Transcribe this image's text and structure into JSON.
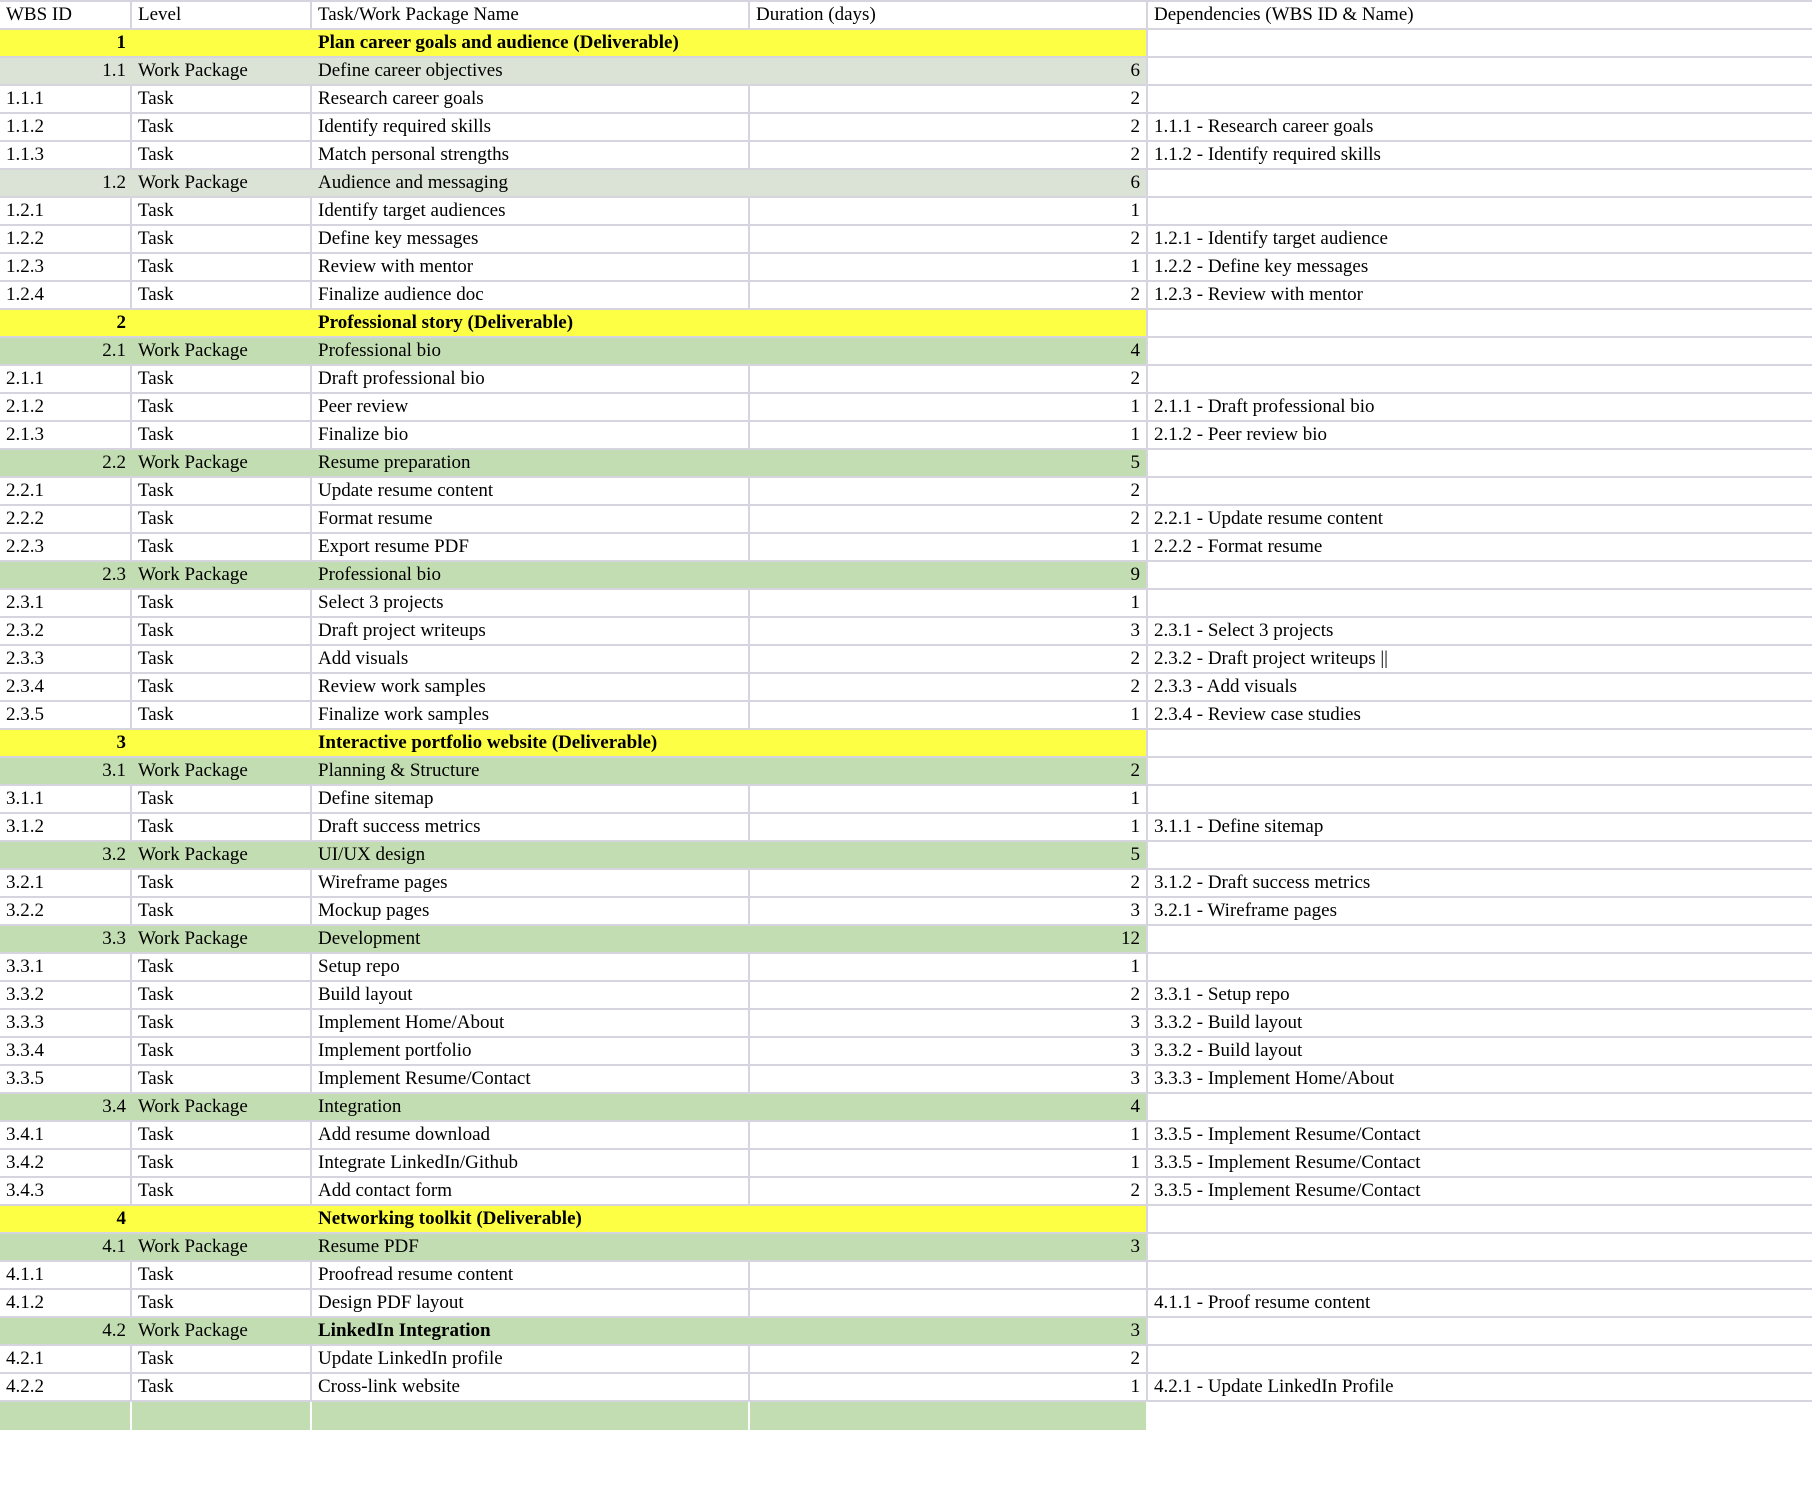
{
  "colors": {
    "deliverable_bg": "#fdff44",
    "work_package_bg": "#c3ddb2",
    "work_package_pale_bg": "#dbe3d6",
    "gridline": "#d6d4de",
    "background": "#ffffff",
    "text": "#000000"
  },
  "table": {
    "columns": [
      {
        "key": "id",
        "label": "WBS ID"
      },
      {
        "key": "level",
        "label": "Level"
      },
      {
        "key": "name",
        "label": "Task/Work Package Name"
      },
      {
        "key": "duration",
        "label": "Duration (days)"
      },
      {
        "key": "dependency",
        "label": "Dependencies (WBS ID & Name)"
      }
    ],
    "rows": [
      {
        "id": "1",
        "level": "",
        "name": "Plan career goals and audience (Deliverable)",
        "duration": "",
        "dependency": "",
        "type": "deliverable"
      },
      {
        "id": "1.1",
        "level": "Work Package",
        "name": "Define career objectives",
        "duration": "6",
        "dependency": "",
        "type": "work_package_pale"
      },
      {
        "id": "1.1.1",
        "level": "Task",
        "name": "Research career goals",
        "duration": "2",
        "dependency": "",
        "type": "task"
      },
      {
        "id": "1.1.2",
        "level": "Task",
        "name": "Identify required skills",
        "duration": "2",
        "dependency": "1.1.1 - Research career goals",
        "type": "task"
      },
      {
        "id": "1.1.3",
        "level": "Task",
        "name": "Match personal strengths",
        "duration": "2",
        "dependency": "1.1.2 - Identify required skills",
        "type": "task"
      },
      {
        "id": "1.2",
        "level": "Work Package",
        "name": "Audience and messaging",
        "duration": "6",
        "dependency": "",
        "type": "work_package_pale"
      },
      {
        "id": "1.2.1",
        "level": "Task",
        "name": "Identify target audiences",
        "duration": "1",
        "dependency": "",
        "type": "task"
      },
      {
        "id": "1.2.2",
        "level": "Task",
        "name": "Define key messages",
        "duration": "2",
        "dependency": "1.2.1 - Identify target audience",
        "type": "task"
      },
      {
        "id": "1.2.3",
        "level": "Task",
        "name": "Review with mentor",
        "duration": "1",
        "dependency": "1.2.2 - Define key messages",
        "type": "task"
      },
      {
        "id": "1.2.4",
        "level": "Task",
        "name": "Finalize audience doc",
        "duration": "2",
        "dependency": "1.2.3 - Review with mentor",
        "type": "task"
      },
      {
        "id": "2",
        "level": "",
        "name": "Professional story (Deliverable)",
        "duration": "",
        "dependency": "",
        "type": "deliverable"
      },
      {
        "id": "2.1",
        "level": "Work Package",
        "name": "Professional bio",
        "duration": "4",
        "dependency": "",
        "type": "work_package"
      },
      {
        "id": "2.1.1",
        "level": "Task",
        "name": "Draft professional bio",
        "duration": "2",
        "dependency": "",
        "type": "task"
      },
      {
        "id": "2.1.2",
        "level": "Task",
        "name": "Peer review",
        "duration": "1",
        "dependency": "2.1.1 - Draft professional bio",
        "type": "task"
      },
      {
        "id": "2.1.3",
        "level": "Task",
        "name": "Finalize bio",
        "duration": "1",
        "dependency": "2.1.2 - Peer review bio",
        "type": "task"
      },
      {
        "id": "2.2",
        "level": "Work Package",
        "name": "Resume preparation",
        "duration": "5",
        "dependency": "",
        "type": "work_package"
      },
      {
        "id": "2.2.1",
        "level": "Task",
        "name": "Update resume content",
        "duration": "2",
        "dependency": "",
        "type": "task"
      },
      {
        "id": "2.2.2",
        "level": "Task",
        "name": "Format resume",
        "duration": "2",
        "dependency": "2.2.1 - Update resume content",
        "type": "task"
      },
      {
        "id": "2.2.3",
        "level": "Task",
        "name": "Export resume PDF",
        "duration": "1",
        "dependency": "2.2.2 - Format resume",
        "type": "task"
      },
      {
        "id": "2.3",
        "level": "Work Package",
        "name": "Professional bio",
        "duration": "9",
        "dependency": "",
        "type": "work_package"
      },
      {
        "id": "2.3.1",
        "level": "Task",
        "name": "Select 3 projects",
        "duration": "1",
        "dependency": "",
        "type": "task"
      },
      {
        "id": "2.3.2",
        "level": "Task",
        "name": "Draft project writeups",
        "duration": "3",
        "dependency": "2.3.1 - Select 3 projects",
        "type": "task"
      },
      {
        "id": "2.3.3",
        "level": "Task",
        "name": "Add visuals",
        "duration": "2",
        "dependency": "2.3.2 - Draft project writeups ||",
        "type": "task"
      },
      {
        "id": "2.3.4",
        "level": "Task",
        "name": "Review work samples",
        "duration": "2",
        "dependency": "2.3.3 - Add visuals",
        "type": "task"
      },
      {
        "id": "2.3.5",
        "level": "Task",
        "name": "Finalize work samples",
        "duration": "1",
        "dependency": "2.3.4 - Review case studies",
        "type": "task"
      },
      {
        "id": "3",
        "level": "",
        "name": "Interactive portfolio website (Deliverable)",
        "duration": "",
        "dependency": "",
        "type": "deliverable"
      },
      {
        "id": "3.1",
        "level": "Work Package",
        "name": "Planning & Structure",
        "duration": "2",
        "dependency": "",
        "type": "work_package"
      },
      {
        "id": "3.1.1",
        "level": "Task",
        "name": "Define sitemap",
        "duration": "1",
        "dependency": "",
        "type": "task"
      },
      {
        "id": "3.1.2",
        "level": "Task",
        "name": "Draft success metrics",
        "duration": "1",
        "dependency": "3.1.1 - Define sitemap",
        "type": "task"
      },
      {
        "id": "3.2",
        "level": "Work Package",
        "name": "UI/UX design",
        "duration": "5",
        "dependency": "",
        "type": "work_package"
      },
      {
        "id": "3.2.1",
        "level": "Task",
        "name": "Wireframe pages",
        "duration": "2",
        "dependency": "3.1.2 - Draft success metrics",
        "type": "task"
      },
      {
        "id": "3.2.2",
        "level": "Task",
        "name": "Mockup pages",
        "duration": "3",
        "dependency": "3.2.1 - Wireframe pages",
        "type": "task"
      },
      {
        "id": "3.3",
        "level": "Work Package",
        "name": "Development",
        "duration": "12",
        "dependency": "",
        "type": "work_package"
      },
      {
        "id": "3.3.1",
        "level": "Task",
        "name": "Setup repo",
        "duration": "1",
        "dependency": "",
        "type": "task"
      },
      {
        "id": "3.3.2",
        "level": "Task",
        "name": "Build layout",
        "duration": "2",
        "dependency": "3.3.1 - Setup repo",
        "type": "task"
      },
      {
        "id": "3.3.3",
        "level": "Task",
        "name": "Implement Home/About",
        "duration": "3",
        "dependency": "3.3.2 - Build layout",
        "type": "task"
      },
      {
        "id": "3.3.4",
        "level": "Task",
        "name": "Implement portfolio",
        "duration": "3",
        "dependency": "3.3.2 - Build layout",
        "type": "task"
      },
      {
        "id": "3.3.5",
        "level": "Task",
        "name": "Implement Resume/Contact",
        "duration": "3",
        "dependency": "3.3.3 - Implement Home/About",
        "type": "task"
      },
      {
        "id": "3.4",
        "level": "Work Package",
        "name": "Integration",
        "duration": "4",
        "dependency": "",
        "type": "work_package"
      },
      {
        "id": "3.4.1",
        "level": "Task",
        "name": "Add resume download",
        "duration": "1",
        "dependency": "3.3.5 - Implement Resume/Contact",
        "type": "task"
      },
      {
        "id": "3.4.2",
        "level": "Task",
        "name": "Integrate LinkedIn/Github",
        "duration": "1",
        "dependency": "3.3.5 - Implement Resume/Contact",
        "type": "task"
      },
      {
        "id": "3.4.3",
        "level": "Task",
        "name": "Add contact form",
        "duration": "2",
        "dependency": "3.3.5 - Implement Resume/Contact",
        "type": "task"
      },
      {
        "id": "4",
        "level": "",
        "name": "Networking toolkit (Deliverable)",
        "duration": "",
        "dependency": "",
        "type": "deliverable"
      },
      {
        "id": "4.1",
        "level": "Work Package",
        "name": "Resume PDF",
        "duration": "3",
        "dependency": "",
        "type": "work_package"
      },
      {
        "id": "4.1.1",
        "level": "Task",
        "name": "Proofread resume content",
        "duration": "",
        "dependency": "",
        "type": "task"
      },
      {
        "id": "4.1.2",
        "level": "Task",
        "name": "Design PDF layout",
        "duration": "",
        "dependency": "4.1.1 - Proof resume content",
        "type": "task"
      },
      {
        "id": "4.2",
        "level": "Work Package",
        "name": "LinkedIn Integration",
        "duration": "3",
        "dependency": "",
        "type": "work_package",
        "name_bold": true
      },
      {
        "id": "4.2.1",
        "level": "Task",
        "name": "Update LinkedIn profile",
        "duration": "2",
        "dependency": "",
        "type": "task"
      },
      {
        "id": "4.2.2",
        "level": "Task",
        "name": "Cross-link website",
        "duration": "1",
        "dependency": "4.2.1 - Update LinkedIn Profile",
        "type": "task"
      },
      {
        "id": "",
        "level": "",
        "name": "",
        "duration": "",
        "dependency": "",
        "type": "work_package",
        "partial": true
      }
    ]
  }
}
